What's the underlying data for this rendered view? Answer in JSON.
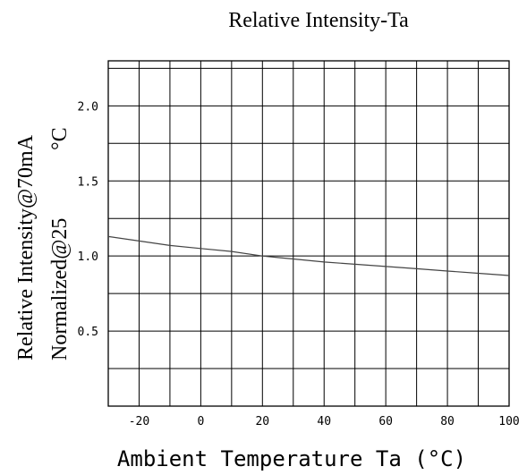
{
  "chart_data": {
    "type": "line",
    "title": "Relative Intensity-Ta",
    "xlabel": "Ambient Temperature Ta (°C)",
    "ylabel_line1": "Relative Intensity@70mA",
    "ylabel_line2_prefix": "Normalized@25",
    "ylabel_line2_unit": "°C",
    "xlim": [
      -30,
      100
    ],
    "ylim": [
      0,
      2.3
    ],
    "x_ticks": [
      -20,
      0,
      20,
      40,
      60,
      80,
      100
    ],
    "x_tick_labels": [
      "-20",
      "0",
      "20",
      "40",
      "60",
      "80",
      "100"
    ],
    "y_ticks": [
      0.5,
      1.0,
      1.5,
      2.0
    ],
    "y_tick_labels": [
      "0.5",
      "1.0",
      "1.5",
      "2.0"
    ],
    "grid": true,
    "series": [
      {
        "x": [
          -30,
          -20,
          -10,
          0,
          10,
          20,
          25,
          30,
          40,
          50,
          60,
          70,
          80,
          90,
          100
        ],
        "y": [
          1.13,
          1.1,
          1.07,
          1.05,
          1.03,
          1.0,
          0.99,
          0.98,
          0.96,
          0.945,
          0.93,
          0.915,
          0.9,
          0.885,
          0.87
        ]
      }
    ]
  }
}
